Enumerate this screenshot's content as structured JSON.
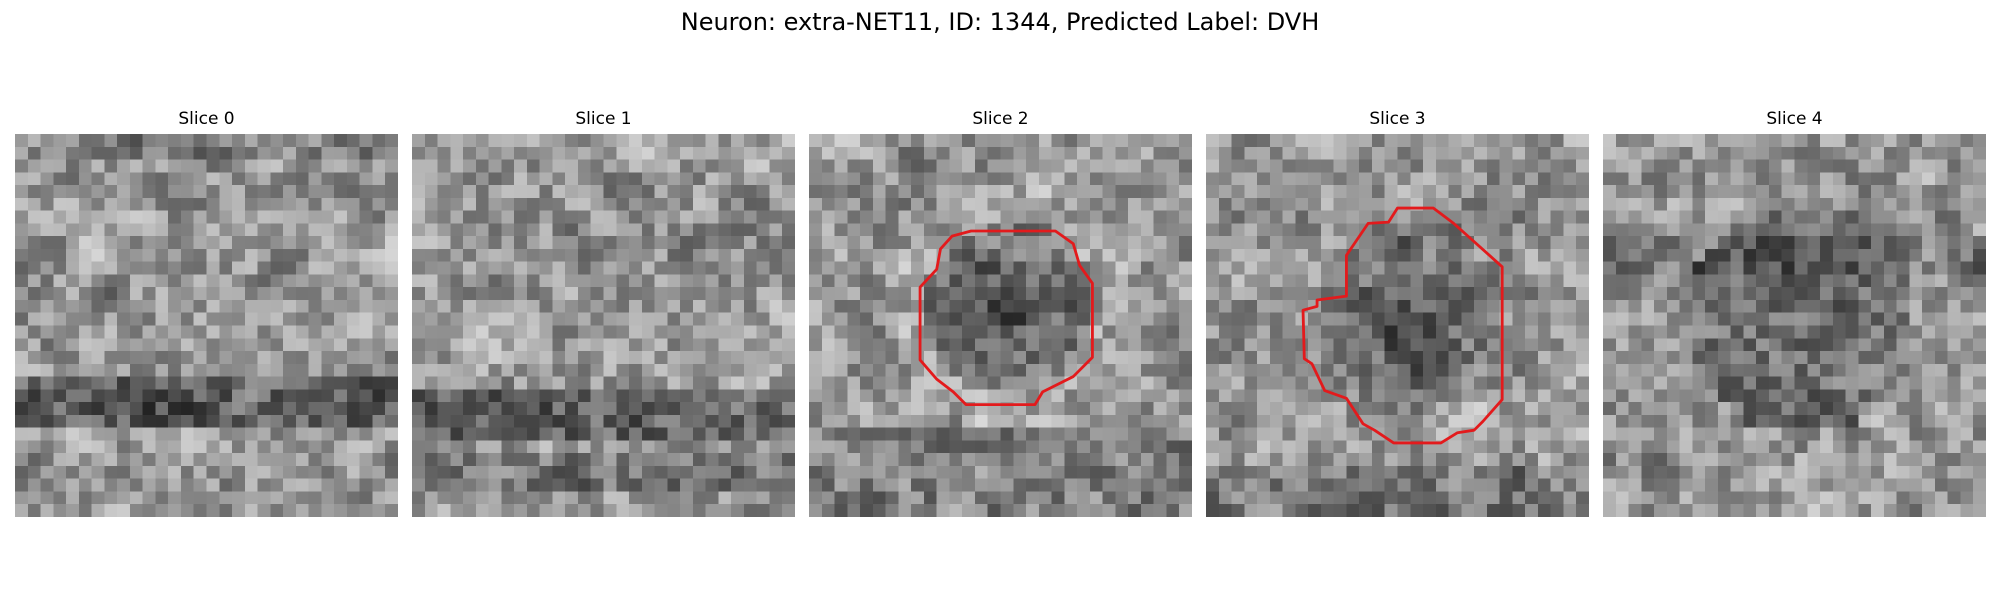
{
  "figure": {
    "title": "Neuron: extra-NET11, ID: 1344, Predicted Label: DVH"
  },
  "slices": [
    {
      "title": "Slice 0",
      "contour": false
    },
    {
      "title": "Slice 1",
      "contour": false
    },
    {
      "title": "Slice 2",
      "contour": true
    },
    {
      "title": "Slice 3",
      "contour": true
    },
    {
      "title": "Slice 4",
      "contour": false
    }
  ],
  "colors": {
    "contour": "#e31a1c",
    "background": "#ffffff"
  }
}
